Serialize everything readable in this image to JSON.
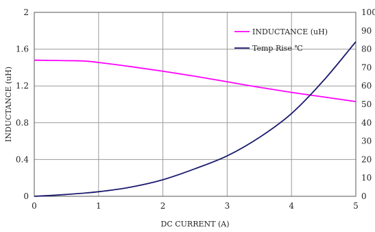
{
  "chart_data": {
    "type": "line",
    "xlabel": "DC CURRENT  (A)",
    "ylabel": "INDUCTANCE (uH)",
    "xlim": [
      0,
      5
    ],
    "ylim": [
      0,
      2
    ],
    "y2lim": [
      0,
      100
    ],
    "grid": true,
    "legend_position": "top-right",
    "x_ticks": [
      "0",
      "1",
      "2",
      "3",
      "4",
      "5"
    ],
    "y_ticks": [
      "0",
      "0.4",
      "0.8",
      "1.2",
      "1.6",
      "2"
    ],
    "y2_ticks": [
      "0",
      "10",
      "20",
      "30",
      "40",
      "50",
      "60",
      "70",
      "80",
      "90",
      "100"
    ],
    "series": [
      {
        "name": "INDUCTANCE (uH)",
        "axis": "left",
        "color": "#ff00ff",
        "x": [
          0,
          0.5,
          0.8,
          1.0,
          1.5,
          2.0,
          2.5,
          3.0,
          3.5,
          4.0,
          4.5,
          5.0
        ],
        "y": [
          1.48,
          1.475,
          1.47,
          1.455,
          1.41,
          1.36,
          1.305,
          1.245,
          1.185,
          1.13,
          1.08,
          1.03
        ]
      },
      {
        "name": "Temp Rise ℃",
        "axis": "right",
        "color": "#1a1a6e",
        "x": [
          0,
          0.5,
          1.0,
          1.5,
          2.0,
          2.5,
          3.0,
          3.5,
          4.0,
          4.5,
          5.0
        ],
        "y": [
          0,
          1,
          2.5,
          5,
          9,
          15,
          22,
          32,
          45,
          63,
          84
        ]
      }
    ]
  }
}
